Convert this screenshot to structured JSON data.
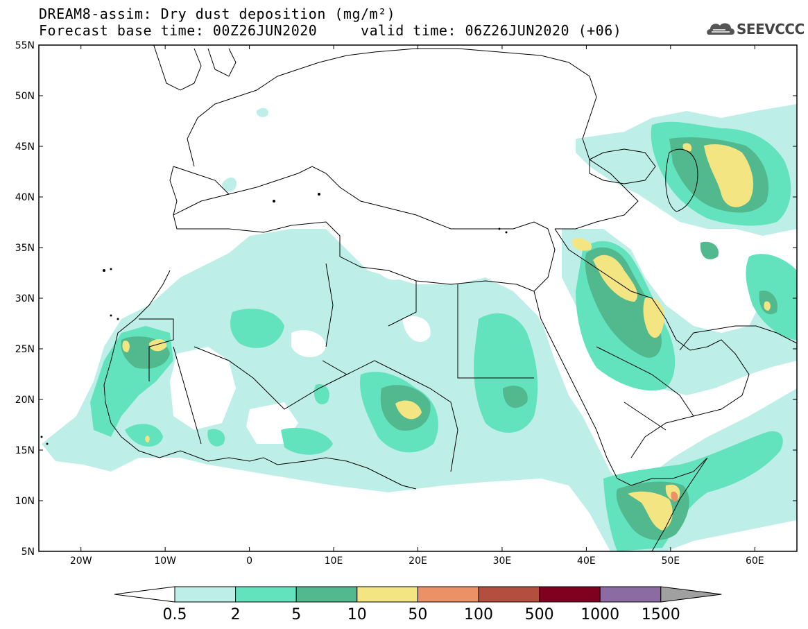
{
  "title": {
    "line1": "DREAM8-assim: Dry dust deposition (mg/m²)",
    "base_label": "Forecast base time:",
    "base_time": "00Z26JUN2020",
    "valid_label": "valid time:",
    "valid_time": "06Z26JUN2020 (+06)"
  },
  "logo": {
    "text": "SEEVCCC",
    "icon": "cloud-logo-icon"
  },
  "map": {
    "lon_range": [
      -25,
      65
    ],
    "lat_range": [
      5,
      55
    ],
    "lat_labels": [
      "55N",
      "50N",
      "45N",
      "40N",
      "35N",
      "30N",
      "25N",
      "20N",
      "15N",
      "10N",
      "5N"
    ],
    "lon_labels": [
      "20W",
      "10W",
      "0",
      "10E",
      "20E",
      "30E",
      "40E",
      "50E",
      "60E"
    ]
  },
  "legend": {
    "boundaries": [
      "0.5",
      "2",
      "5",
      "10",
      "50",
      "100",
      "500",
      "1000",
      "1500"
    ],
    "colors": [
      "#bdeee8",
      "#63e3bd",
      "#52b88e",
      "#f4e583",
      "#ec9165",
      "#b44e3f",
      "#800020",
      "#8c6aa2",
      "#a0a0a0"
    ]
  }
}
